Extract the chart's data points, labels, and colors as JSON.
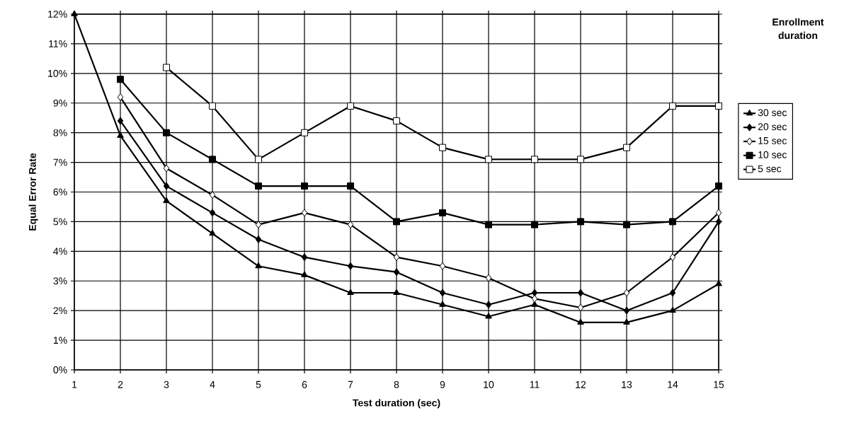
{
  "chart_data": {
    "type": "line",
    "xlabel": "Test duration (sec)",
    "ylabel": "Equal Error Rate",
    "legend_title": "Enrollment duration",
    "x": [
      1,
      2,
      3,
      4,
      5,
      6,
      7,
      8,
      9,
      10,
      11,
      12,
      13,
      14,
      15
    ],
    "series": [
      {
        "name": "30 sec",
        "color": "#000000",
        "marker": "triangle",
        "values": [
          12,
          7.9,
          5.7,
          4.6,
          3.5,
          3.2,
          2.6,
          2.6,
          2.2,
          1.8,
          2.2,
          1.6,
          1.6,
          2.0,
          2.9
        ]
      },
      {
        "name": "20 sec",
        "color": "#000000",
        "marker": "diamond",
        "values": [
          null,
          8.4,
          6.2,
          5.3,
          4.4,
          3.8,
          3.5,
          3.3,
          2.6,
          2.2,
          2.6,
          2.6,
          2.0,
          2.6,
          5.0
        ]
      },
      {
        "name": "15 sec",
        "color": "#000000",
        "marker": "diamond",
        "values": [
          null,
          9.2,
          6.8,
          5.9,
          4.9,
          5.3,
          4.9,
          3.8,
          3.5,
          3.1,
          2.4,
          2.1,
          2.6,
          3.8,
          5.3
        ]
      },
      {
        "name": "10 sec",
        "color": "#000000",
        "marker": "square",
        "values": [
          null,
          9.8,
          8.0,
          7.1,
          6.2,
          6.2,
          6.2,
          5.0,
          5.3,
          4.9,
          4.9,
          5.0,
          4.9,
          5.0,
          6.2
        ]
      },
      {
        "name": "5 sec",
        "color": "#000000",
        "marker": "square",
        "values": [
          null,
          null,
          10.2,
          8.9,
          7.1,
          8.0,
          8.9,
          8.4,
          7.5,
          7.1,
          7.1,
          7.1,
          7.5,
          8.9,
          8.9
        ]
      }
    ],
    "xlim": [
      1,
      15
    ],
    "xticks": [
      1,
      2,
      3,
      4,
      5,
      6,
      7,
      8,
      9,
      10,
      11,
      12,
      13,
      14,
      15
    ],
    "ylim": [
      0,
      12
    ],
    "yticks": [
      {
        "value": 0,
        "label": "0%"
      },
      {
        "value": 1,
        "label": "1%"
      },
      {
        "value": 2,
        "label": "2%"
      },
      {
        "value": 3,
        "label": "3%"
      },
      {
        "value": 4,
        "label": "4%"
      },
      {
        "value": 5,
        "label": "5%"
      },
      {
        "value": 6,
        "label": "6%"
      },
      {
        "value": 7,
        "label": "7%"
      },
      {
        "value": 8,
        "label": "8%"
      },
      {
        "value": 9,
        "label": "9%"
      },
      {
        "value": 10,
        "label": "10%"
      },
      {
        "value": 11,
        "label": "11%"
      },
      {
        "value": 12,
        "label": "12%"
      }
    ],
    "grid": true,
    "legend": "right",
    "line_style": "solid"
  }
}
